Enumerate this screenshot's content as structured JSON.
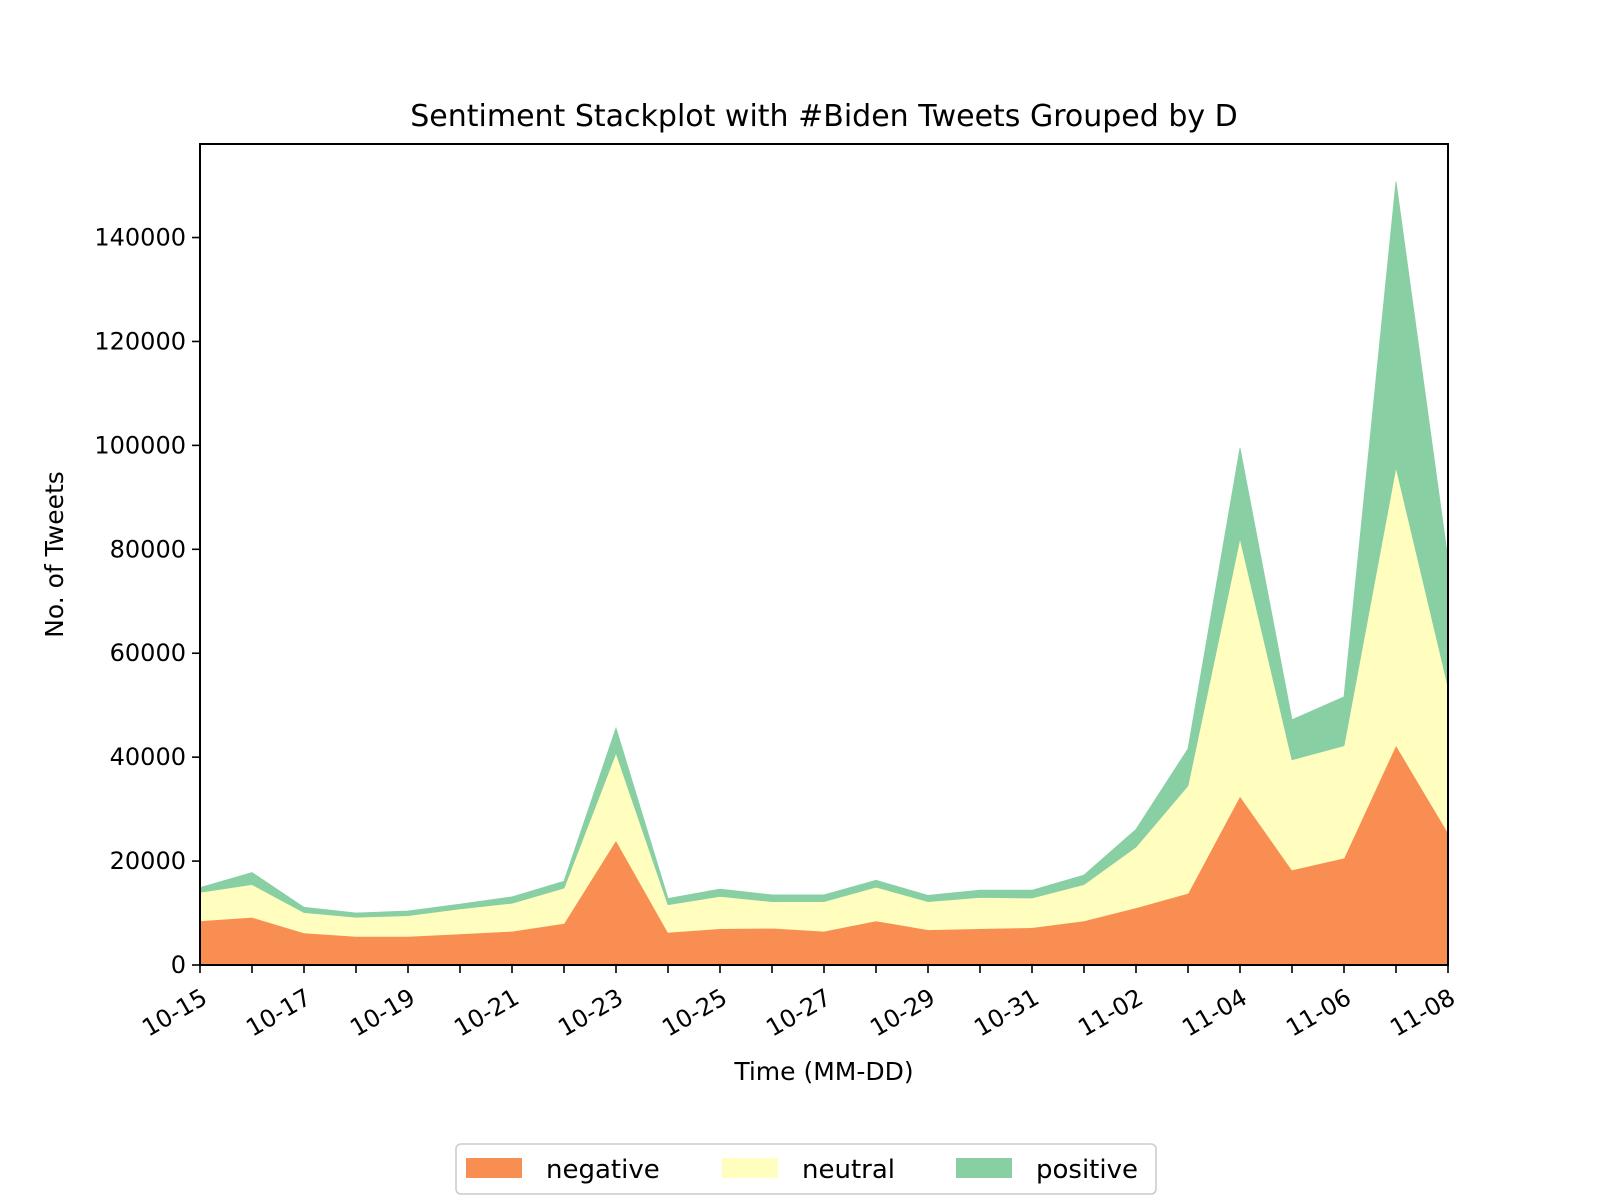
{
  "chart_data": {
    "type": "area",
    "stacked": true,
    "title": "Sentiment Stackplot with #Biden Tweets Grouped by D",
    "xlabel": "Time (MM-DD)",
    "ylabel": "No. of Tweets",
    "ylim": [
      0,
      158000
    ],
    "yticks": [
      0,
      20000,
      40000,
      60000,
      80000,
      100000,
      120000,
      140000
    ],
    "x": [
      "10-15",
      "10-16",
      "10-17",
      "10-18",
      "10-19",
      "10-20",
      "10-21",
      "10-22",
      "10-23",
      "10-24",
      "10-25",
      "10-26",
      "10-27",
      "10-28",
      "10-29",
      "10-30",
      "10-31",
      "11-01",
      "11-02",
      "11-03",
      "11-04",
      "11-05",
      "11-06",
      "11-07",
      "11-08"
    ],
    "xtick_labels": [
      "10-15",
      "10-17",
      "10-19",
      "10-21",
      "10-23",
      "10-25",
      "10-27",
      "10-29",
      "10-31",
      "11-02",
      "11-04",
      "11-06",
      "11-08"
    ],
    "series": [
      {
        "name": "negative",
        "color": "#f88e52",
        "values": [
          8500,
          9200,
          6200,
          5500,
          5500,
          6000,
          6500,
          8000,
          24000,
          6300,
          7000,
          7100,
          6500,
          8500,
          6800,
          7000,
          7200,
          8500,
          11000,
          13800,
          32500,
          18300,
          20600,
          42300,
          25500
        ]
      },
      {
        "name": "neutral",
        "color": "#fffebe",
        "values": [
          5500,
          6300,
          3900,
          3700,
          4000,
          4800,
          5400,
          6800,
          16800,
          5300,
          6200,
          5100,
          5700,
          6500,
          5400,
          6000,
          5700,
          7000,
          11700,
          20700,
          49600,
          21200,
          21600,
          53500,
          28100
        ]
      },
      {
        "name": "positive",
        "color": "#88cfa4",
        "values": [
          900,
          2300,
          1000,
          800,
          900,
          900,
          1200,
          1300,
          4800,
          1200,
          1400,
          1300,
          1300,
          1300,
          1200,
          1400,
          1500,
          1800,
          3400,
          7100,
          17400,
          7700,
          9400,
          55000,
          24400
        ]
      }
    ],
    "legend": {
      "position": "bottom-center",
      "ncol": 3
    },
    "grid": false
  }
}
